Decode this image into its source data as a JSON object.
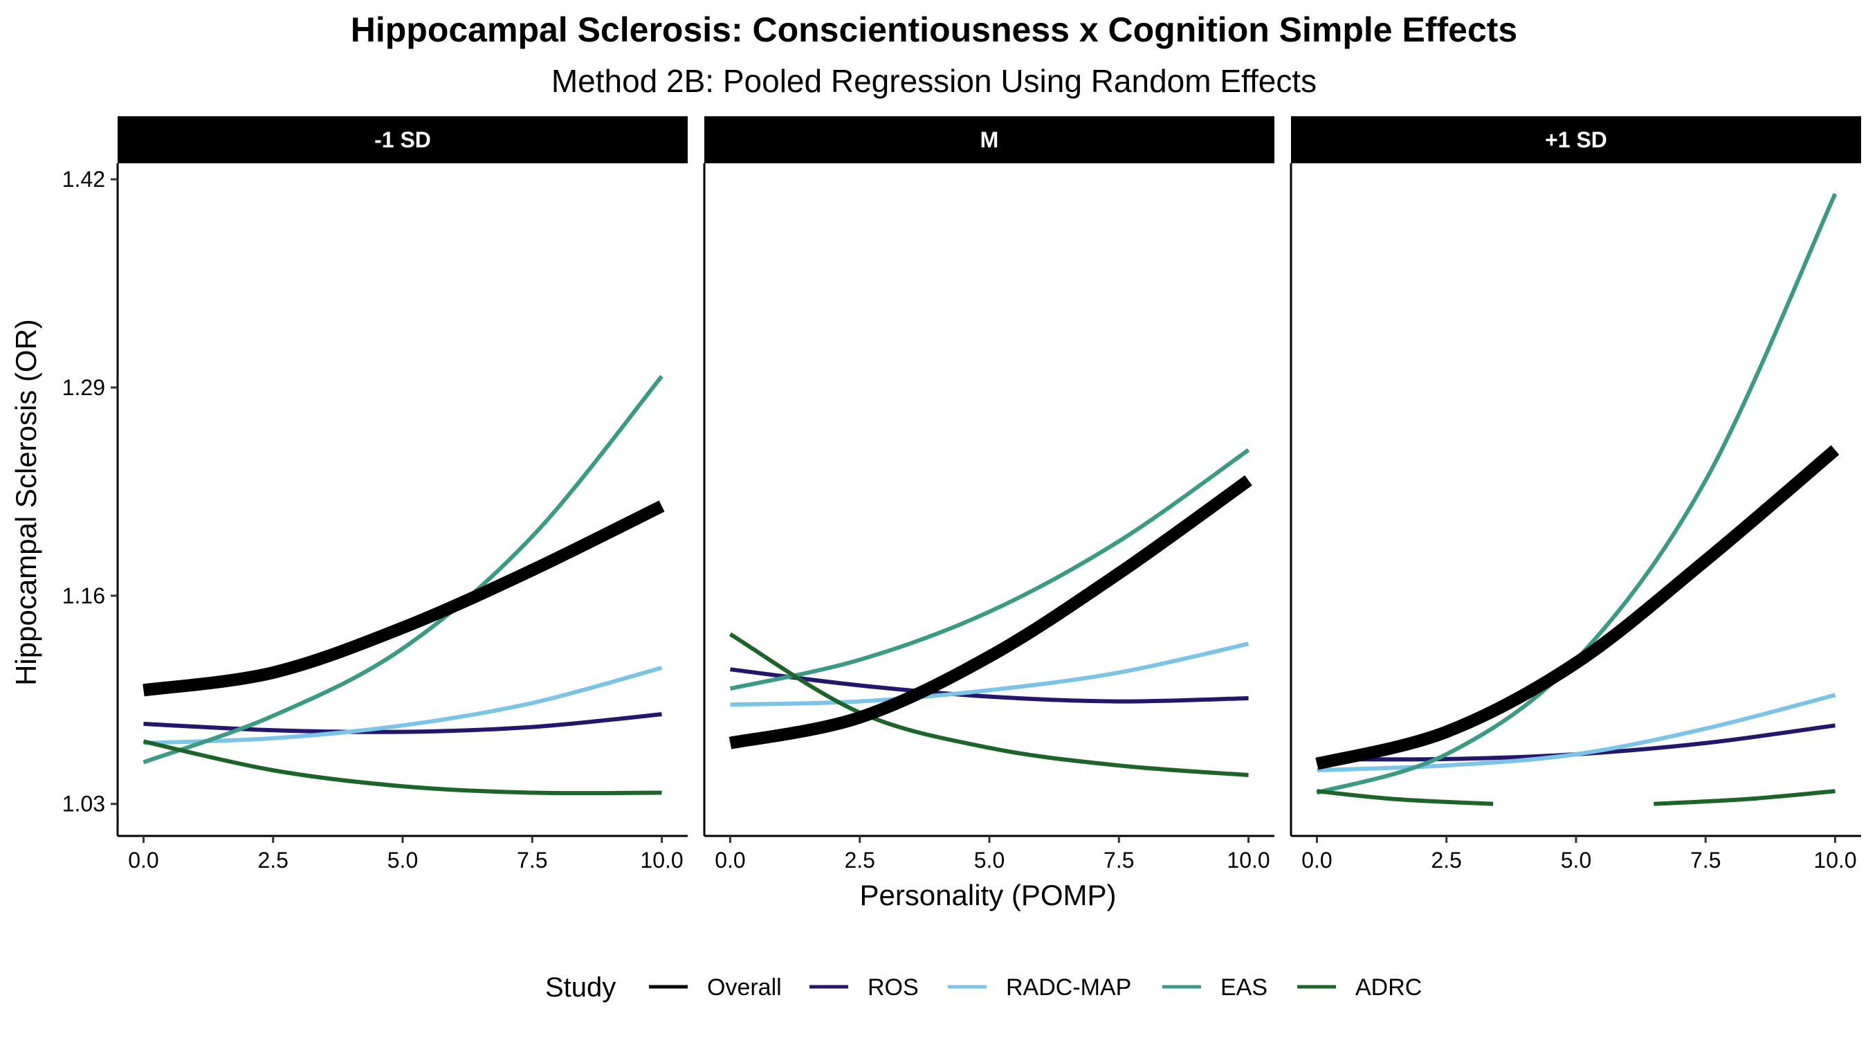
{
  "chart_data": {
    "type": "line",
    "title": "Hippocampal Sclerosis: Conscientiousness x Cognition Simple Effects",
    "subtitle": "Method 2B: Pooled Regression Using Random Effects",
    "xlabel": "Personality (POMP)",
    "ylabel": "Hippocampal Sclerosis (OR)",
    "xlim": [
      -0.5,
      10.5
    ],
    "ylim": [
      1.01,
      1.43
    ],
    "x_ticks": [
      0,
      2.5,
      5,
      7.5,
      10
    ],
    "x_tick_labels": [
      "0.0",
      "2.5",
      "5.0",
      "7.5",
      "10.0"
    ],
    "y_ticks": [
      1.03,
      1.16,
      1.29,
      1.42
    ],
    "y_tick_labels": [
      "1.03",
      "1.16",
      "1.29",
      "1.42"
    ],
    "grid": false,
    "legend": {
      "title": "Study",
      "position": "bottom",
      "entries": [
        {
          "name": "Overall",
          "color": "#000000"
        },
        {
          "name": "ROS",
          "color": "#23166b"
        },
        {
          "name": "RADC-MAP",
          "color": "#7cc3e8"
        },
        {
          "name": "EAS",
          "color": "#3a9a84"
        },
        {
          "name": "ADRC",
          "color": "#1b6528"
        }
      ]
    },
    "panels": [
      {
        "label": "-1 SD",
        "series": [
          {
            "name": "Overall",
            "color": "#000000",
            "width": 18,
            "points": [
              [
                0,
                1.101
              ],
              [
                2.5,
                1.112
              ],
              [
                5,
                1.14
              ],
              [
                7.5,
                1.176
              ],
              [
                10,
                1.216
              ]
            ]
          },
          {
            "name": "ROS",
            "color": "#23166b",
            "width": 6,
            "points": [
              [
                0,
                1.08
              ],
              [
                2.5,
                1.076
              ],
              [
                5,
                1.075
              ],
              [
                7.5,
                1.078
              ],
              [
                10,
                1.086
              ]
            ]
          },
          {
            "name": "RADC-MAP",
            "color": "#7cc3e8",
            "width": 6,
            "points": [
              [
                0,
                1.068
              ],
              [
                2.5,
                1.071
              ],
              [
                5,
                1.079
              ],
              [
                7.5,
                1.093
              ],
              [
                10,
                1.115
              ]
            ]
          },
          {
            "name": "EAS",
            "color": "#3a9a84",
            "width": 6,
            "points": [
              [
                0,
                1.056
              ],
              [
                2.5,
                1.085
              ],
              [
                5,
                1.127
              ],
              [
                7.5,
                1.197
              ],
              [
                10,
                1.297
              ]
            ]
          },
          {
            "name": "ADRC",
            "color": "#1b6528",
            "width": 6,
            "points": [
              [
                0,
                1.069
              ],
              [
                2.5,
                1.051
              ],
              [
                5,
                1.041
              ],
              [
                7.5,
                1.037
              ],
              [
                10,
                1.037
              ]
            ]
          }
        ]
      },
      {
        "label": "M",
        "series": [
          {
            "name": "Overall",
            "color": "#000000",
            "width": 18,
            "points": [
              [
                0,
                1.068
              ],
              [
                2.5,
                1.084
              ],
              [
                5,
                1.122
              ],
              [
                7.5,
                1.174
              ],
              [
                10,
                1.232
              ]
            ]
          },
          {
            "name": "ROS",
            "color": "#23166b",
            "width": 6,
            "points": [
              [
                0,
                1.114
              ],
              [
                2.5,
                1.104
              ],
              [
                5,
                1.097
              ],
              [
                7.5,
                1.094
              ],
              [
                10,
                1.096
              ]
            ]
          },
          {
            "name": "RADC-MAP",
            "color": "#7cc3e8",
            "width": 6,
            "points": [
              [
                0,
                1.092
              ],
              [
                2.5,
                1.094
              ],
              [
                5,
                1.101
              ],
              [
                7.5,
                1.112
              ],
              [
                10,
                1.13
              ]
            ]
          },
          {
            "name": "EAS",
            "color": "#3a9a84",
            "width": 6,
            "points": [
              [
                0,
                1.102
              ],
              [
                2.5,
                1.12
              ],
              [
                5,
                1.15
              ],
              [
                7.5,
                1.194
              ],
              [
                10,
                1.251
              ]
            ]
          },
          {
            "name": "ADRC",
            "color": "#1b6528",
            "width": 6,
            "points": [
              [
                0,
                1.136
              ],
              [
                2.5,
                1.087
              ],
              [
                5,
                1.065
              ],
              [
                7.5,
                1.054
              ],
              [
                10,
                1.048
              ]
            ]
          }
        ]
      },
      {
        "label": "+1 SD",
        "series": [
          {
            "name": "Overall",
            "color": "#000000",
            "width": 18,
            "points": [
              [
                0,
                1.055
              ],
              [
                2.5,
                1.075
              ],
              [
                5,
                1.118
              ],
              [
                7.5,
                1.182
              ],
              [
                10,
                1.251
              ]
            ]
          },
          {
            "name": "ROS",
            "color": "#23166b",
            "width": 6,
            "points": [
              [
                0,
                1.058
              ],
              [
                2.5,
                1.058
              ],
              [
                5,
                1.061
              ],
              [
                7.5,
                1.068
              ],
              [
                10,
                1.079
              ]
            ]
          },
          {
            "name": "RADC-MAP",
            "color": "#7cc3e8",
            "width": 6,
            "points": [
              [
                0,
                1.051
              ],
              [
                2.5,
                1.054
              ],
              [
                5,
                1.061
              ],
              [
                7.5,
                1.077
              ],
              [
                10,
                1.098
              ]
            ]
          },
          {
            "name": "EAS",
            "color": "#3a9a84",
            "width": 6,
            "points": [
              [
                0,
                1.037
              ],
              [
                2.5,
                1.061
              ],
              [
                5,
                1.12
              ],
              [
                7.5,
                1.232
              ],
              [
                10,
                1.411
              ]
            ]
          },
          {
            "name": "ADRC",
            "color": "#1b6528",
            "width": 6,
            "segments": [
              [
                [
                  0,
                  1.038
                ],
                [
                  1.5,
                  1.033
                ],
                [
                  3.4,
                  1.03
                ]
              ],
              [
                [
                  6.5,
                  1.03
                ],
                [
                  8.3,
                  1.033
                ],
                [
                  10,
                  1.038
                ]
              ]
            ]
          }
        ]
      }
    ]
  }
}
